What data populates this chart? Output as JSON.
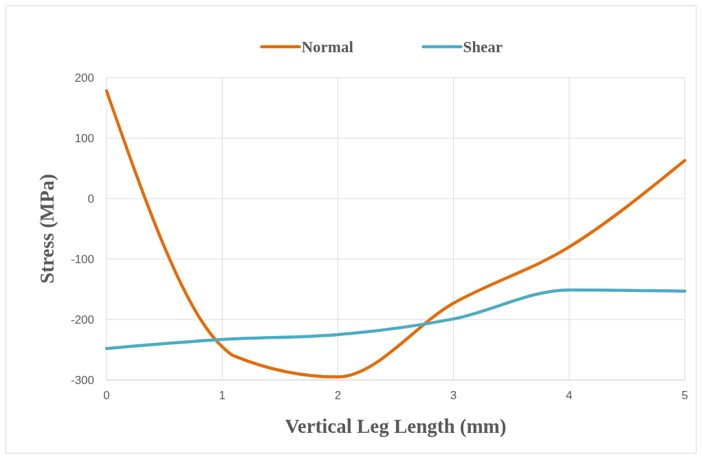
{
  "chart_data": {
    "type": "line",
    "xlabel": "Vertical Leg Length (mm)",
    "ylabel": "Stress (MPa)",
    "xlim": [
      0,
      5
    ],
    "xticks": [
      0,
      1,
      2,
      3,
      4,
      5
    ],
    "ylim": [
      -300,
      200
    ],
    "yticks": [
      -300,
      -200,
      -100,
      0,
      100,
      200
    ],
    "series": [
      {
        "name": "Normal",
        "color": "#e46c0a",
        "x": [
          0,
          1,
          1.1,
          2,
          3,
          4,
          5
        ],
        "values": [
          178,
          -245,
          -260,
          -295,
          -173,
          -80,
          63
        ]
      },
      {
        "name": "Shear",
        "color": "#4bacc6",
        "x": [
          0,
          1,
          2,
          3,
          4,
          5
        ],
        "values": [
          -248,
          -233,
          -225,
          -199,
          -151,
          -153
        ]
      }
    ],
    "grid": true,
    "legend": "top",
    "line_style": "solid"
  }
}
